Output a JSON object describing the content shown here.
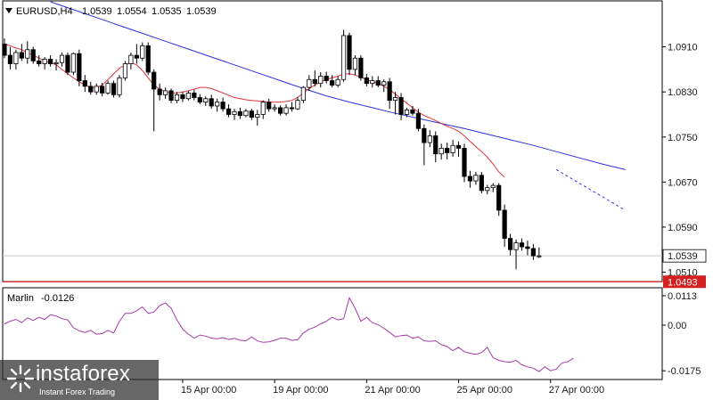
{
  "chart_data": [
    {
      "type": "candlestick",
      "symbol_timeframe": "EURUSD,H4",
      "ohlc_header": [
        "1.0539",
        "1.0554",
        "1.0535",
        "1.0539"
      ],
      "y_ticks": [
        "1.0910",
        "1.0830",
        "1.0750",
        "1.0670",
        "1.0590",
        "1.0510"
      ],
      "y_tick_values": [
        1.091,
        1.083,
        1.075,
        1.067,
        1.059,
        1.051
      ],
      "ylim": [
        1.0495,
        1.099
      ],
      "x_ticks": [
        "15 Apr 00:00",
        "19 Apr 00:00",
        "21 Apr 00:00",
        "25 Apr 00:00",
        "27 Apr 00:00"
      ],
      "x_tick_bar_index": [
        31,
        47,
        63,
        79,
        95
      ],
      "current_price": "1.0539",
      "current_price_value": 1.0539,
      "support_level": "1.0493",
      "support_level_value": 1.0493,
      "candles": [
        [
          1.0915,
          1.0925,
          1.089,
          1.0895
        ],
        [
          1.0895,
          1.091,
          1.087,
          1.088
        ],
        [
          1.088,
          1.0905,
          1.087,
          1.09
        ],
        [
          1.09,
          1.0915,
          1.0885,
          1.089
        ],
        [
          1.089,
          1.092,
          1.088,
          1.0905
        ],
        [
          1.0905,
          1.091,
          1.088,
          1.0885
        ],
        [
          1.0885,
          1.0895,
          1.0875,
          1.088
        ],
        [
          1.088,
          1.0892,
          1.087,
          1.0888
        ],
        [
          1.0888,
          1.0895,
          1.0875,
          1.088
        ],
        [
          1.088,
          1.0888,
          1.0868,
          1.0882
        ],
        [
          1.0882,
          1.09,
          1.0875,
          1.0895
        ],
        [
          1.0895,
          1.09,
          1.086,
          1.0865
        ],
        [
          1.0865,
          1.09,
          1.086,
          1.0898
        ],
        [
          1.0898,
          1.0905,
          1.084,
          1.085
        ],
        [
          1.085,
          1.086,
          1.083,
          1.084
        ],
        [
          1.084,
          1.0848,
          1.0825,
          1.083
        ],
        [
          1.083,
          1.0845,
          1.0825,
          1.084
        ],
        [
          1.084,
          1.0846,
          1.0822,
          1.0828
        ],
        [
          1.0828,
          1.085,
          1.0825,
          1.0845
        ],
        [
          1.0845,
          1.085,
          1.082,
          1.0825
        ],
        [
          1.0825,
          1.086,
          1.082,
          1.0855
        ],
        [
          1.0855,
          1.0885,
          1.085,
          1.088
        ],
        [
          1.088,
          1.09,
          1.087,
          1.0895
        ],
        [
          1.0895,
          1.0915,
          1.088,
          1.089
        ],
        [
          1.089,
          1.0918,
          1.0885,
          1.0912
        ],
        [
          1.0912,
          1.0918,
          1.086,
          1.0865
        ],
        [
          1.0865,
          1.087,
          1.076,
          1.0835
        ],
        [
          1.0835,
          1.0845,
          1.0815,
          1.0825
        ],
        [
          1.0825,
          1.0838,
          1.0818,
          1.0832
        ],
        [
          1.0832,
          1.0836,
          1.081,
          1.0815
        ],
        [
          1.0815,
          1.083,
          1.081,
          1.0825
        ],
        [
          1.0825,
          1.083,
          1.0812,
          1.0818
        ],
        [
          1.0818,
          1.0832,
          1.0815,
          1.0828
        ],
        [
          1.0828,
          1.0834,
          1.0815,
          1.082
        ],
        [
          1.082,
          1.0826,
          1.0808,
          1.0812
        ],
        [
          1.0812,
          1.0822,
          1.0805,
          1.0818
        ],
        [
          1.0818,
          1.0825,
          1.08,
          1.0805
        ],
        [
          1.0805,
          1.0818,
          1.0795,
          1.0812
        ],
        [
          1.0812,
          1.082,
          1.0795,
          1.08
        ],
        [
          1.08,
          1.0808,
          1.0785,
          1.079
        ],
        [
          1.079,
          1.08,
          1.078,
          1.0795
        ],
        [
          1.0795,
          1.0802,
          1.0782,
          1.0788
        ],
        [
          1.0788,
          1.08,
          1.0785,
          1.0796
        ],
        [
          1.0796,
          1.08,
          1.078,
          1.0785
        ],
        [
          1.0785,
          1.0798,
          1.077,
          1.079
        ],
        [
          1.079,
          1.0815,
          1.0782,
          1.0812
        ],
        [
          1.0812,
          1.0818,
          1.0795,
          1.08
        ],
        [
          1.08,
          1.0808,
          1.0795,
          1.0802
        ],
        [
          1.0802,
          1.0806,
          1.0788,
          1.0792
        ],
        [
          1.0792,
          1.0808,
          1.0788,
          1.0802
        ],
        [
          1.0802,
          1.0812,
          1.0795,
          1.08
        ],
        [
          1.08,
          1.082,
          1.0798,
          1.0815
        ],
        [
          1.0815,
          1.084,
          1.081,
          1.0838
        ],
        [
          1.0838,
          1.086,
          1.0832,
          1.0852
        ],
        [
          1.0852,
          1.0868,
          1.084,
          1.0845
        ],
        [
          1.0845,
          1.0865,
          1.0838,
          1.0858
        ],
        [
          1.0858,
          1.0866,
          1.0845,
          1.085
        ],
        [
          1.085,
          1.086,
          1.0838,
          1.0842
        ],
        [
          1.0842,
          1.0858,
          1.0838,
          1.0852
        ],
        [
          1.0852,
          1.094,
          1.0848,
          1.093
        ],
        [
          1.093,
          1.0935,
          1.086,
          1.087
        ],
        [
          1.087,
          1.0895,
          1.086,
          1.089
        ],
        [
          1.089,
          1.0895,
          1.085,
          1.0855
        ],
        [
          1.0855,
          1.0862,
          1.084,
          1.0845
        ],
        [
          1.0845,
          1.0858,
          1.0838,
          1.085
        ],
        [
          1.085,
          1.0858,
          1.0838,
          1.0842
        ],
        [
          1.0842,
          1.0852,
          1.083,
          1.0848
        ],
        [
          1.0848,
          1.0855,
          1.08,
          1.0815
        ],
        [
          1.0815,
          1.083,
          1.079,
          1.082
        ],
        [
          1.082,
          1.0828,
          1.078,
          1.079
        ],
        [
          1.079,
          1.0802,
          1.0785,
          1.0798
        ],
        [
          1.0798,
          1.0805,
          1.0788,
          1.0792
        ],
        [
          1.0792,
          1.08,
          1.076,
          1.0765
        ],
        [
          1.0765,
          1.0772,
          1.07,
          1.074
        ],
        [
          1.074,
          1.0762,
          1.0732,
          1.0752
        ],
        [
          1.0752,
          1.076,
          1.0705,
          1.072
        ],
        [
          1.072,
          1.0738,
          1.071,
          1.073
        ],
        [
          1.073,
          1.074,
          1.071,
          1.0722
        ],
        [
          1.0722,
          1.0745,
          1.0715,
          1.0735
        ],
        [
          1.0735,
          1.0742,
          1.0715,
          1.073
        ],
        [
          1.073,
          1.0738,
          1.067,
          1.068
        ],
        [
          1.068,
          1.069,
          1.066,
          1.0672
        ],
        [
          1.0672,
          1.0688,
          1.0665,
          1.0682
        ],
        [
          1.0682,
          1.0688,
          1.065,
          1.0655
        ],
        [
          1.0655,
          1.0665,
          1.0648,
          1.066
        ],
        [
          1.066,
          1.0668,
          1.0652,
          1.0664
        ],
        [
          1.0664,
          1.0668,
          1.061,
          1.062
        ],
        [
          1.062,
          1.063,
          1.0555,
          1.057
        ],
        [
          1.057,
          1.0578,
          1.054,
          1.055
        ],
        [
          1.055,
          1.0568,
          1.0515,
          1.0562
        ],
        [
          1.0562,
          1.057,
          1.0548,
          1.0555
        ],
        [
          1.0555,
          1.0566,
          1.054,
          1.0552
        ],
        [
          1.0552,
          1.056,
          1.0532,
          1.0539
        ],
        [
          1.0539,
          1.0554,
          1.0535,
          1.0539
        ]
      ],
      "ma_red": [
        1.0915,
        1.0912,
        1.0908,
        1.0905,
        1.09,
        1.0895,
        1.089,
        1.0885,
        1.0882,
        1.0878,
        1.087,
        1.0862,
        1.0855,
        1.0848,
        1.0842,
        1.0838,
        1.0838,
        1.0842,
        1.0852,
        1.0862,
        1.0872,
        1.0878,
        1.0882,
        1.0878,
        1.0868,
        1.0855,
        1.0842,
        1.0835,
        1.083,
        1.0828,
        1.0828,
        1.083,
        1.0832,
        1.0835,
        1.0838,
        1.0838,
        1.0836,
        1.0832,
        1.0828,
        1.0824,
        1.082,
        1.0818,
        1.0816,
        1.0815,
        1.0814,
        1.0813,
        1.0812,
        1.0812,
        1.0812,
        1.0813,
        1.0815,
        1.082,
        1.0828,
        1.0836,
        1.0842,
        1.0848,
        1.0852,
        1.0855,
        1.0858,
        1.0862,
        1.0862,
        1.086,
        1.0856,
        1.0852,
        1.0848,
        1.0845,
        1.084,
        1.0834,
        1.0826,
        1.0818,
        1.081,
        1.0802,
        1.0794,
        1.0788,
        1.0784,
        1.0779,
        1.0774,
        1.0769,
        1.0765,
        1.076,
        1.0752,
        1.0742,
        1.0733,
        1.0724,
        1.0714,
        1.0702,
        1.0688,
        1.0679
      ],
      "ma_red_start_index": 0,
      "ma_blue": [
        1.099,
        1.0976,
        1.0962,
        1.0948,
        1.0934,
        1.092,
        1.0906,
        1.0892,
        1.0878,
        1.0864,
        1.085,
        1.0836,
        1.0823,
        1.0812,
        1.0802,
        1.0792,
        1.0783,
        1.0774,
        1.0765,
        1.0755,
        1.0745,
        1.0735,
        1.0724,
        1.0713,
        1.0702,
        1.0692
      ],
      "ma_blue_start_index": 8,
      "ma_blue_step": 4,
      "ma_blue_projection": [
        1.0692,
        1.062
      ],
      "ma_blue_projection_bars": [
        96,
        108
      ]
    },
    {
      "type": "line",
      "indicator": "Marlin",
      "value_label": "-0.0126",
      "y_ticks": [
        "0.0113",
        "0.00",
        "-0.0175"
      ],
      "y_tick_values": [
        0.0113,
        0.0,
        -0.0175
      ],
      "ylim": [
        -0.0205,
        0.014
      ],
      "values": [
        0.0005,
        0.0015,
        0.0022,
        0.001,
        0.0028,
        0.0018,
        0.003,
        0.0022,
        0.004,
        0.0035,
        0.0025,
        0.002,
        -0.001,
        -0.0022,
        -0.0028,
        -0.002,
        -0.0035,
        -0.0032,
        -0.002,
        -0.003,
        0.0015,
        0.0045,
        0.0045,
        0.0055,
        0.007,
        0.0045,
        0.005,
        0.0075,
        0.0085,
        0.0065,
        0.002,
        -0.0015,
        -0.0035,
        -0.005,
        -0.0038,
        -0.0042,
        -0.005,
        -0.0052,
        -0.0048,
        -0.0055,
        -0.005,
        -0.0058,
        -0.006,
        -0.0045,
        -0.006,
        -0.0066,
        -0.0064,
        -0.0058,
        -0.005,
        -0.005,
        -0.0058,
        -0.0056,
        -0.003,
        -0.0015,
        -0.0008,
        0.0005,
        0.0015,
        0.003,
        0.002,
        0.0025,
        0.0105,
        0.0065,
        0.0015,
        0.003,
        0.001,
        0.0002,
        -0.0012,
        -0.0028,
        -0.0045,
        -0.004,
        -0.0038,
        -0.005,
        -0.0045,
        -0.006,
        -0.0062,
        -0.006,
        -0.0075,
        -0.0082,
        -0.0098,
        -0.0085,
        -0.0102,
        -0.0108,
        -0.0112,
        -0.0105,
        -0.0085,
        -0.0125,
        -0.0135,
        -0.014,
        -0.0142,
        -0.0135,
        -0.0152,
        -0.016,
        -0.0165,
        -0.0178,
        -0.016,
        -0.0175,
        -0.0168,
        -0.0145,
        -0.014,
        -0.0126
      ],
      "start_index": 0
    }
  ],
  "watermark": {
    "name": "instaforex",
    "tagline": "Instant Forex Trading"
  },
  "colors": {
    "bull_fill": "#ffffff",
    "bear_fill": "#000000",
    "ma_red": "#e0323c",
    "ma_blue": "#2f2fe0",
    "support": "#d42020",
    "marlin": "#a43ca8",
    "axis": "#000000"
  }
}
